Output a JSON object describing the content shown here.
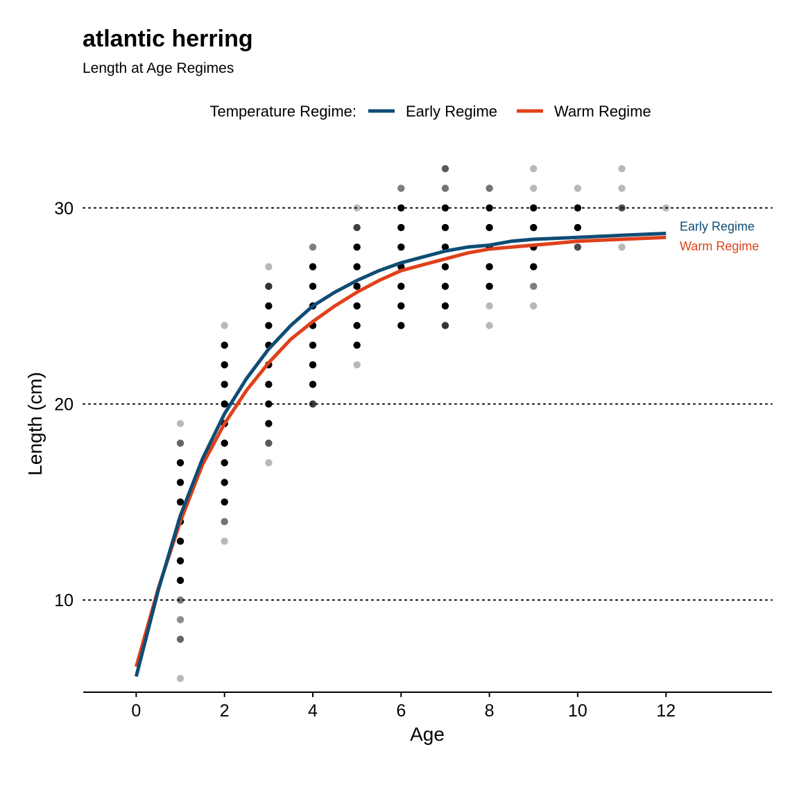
{
  "chart_data": {
    "type": "scatter",
    "title": "atlantic herring",
    "subtitle": "Length at Age Regimes",
    "xlabel": "Age",
    "ylabel": "Length (cm)",
    "xlim": [
      -1.2,
      14.4
    ],
    "ylim": [
      5.3,
      33.6
    ],
    "xticks": [
      0,
      2,
      4,
      6,
      8,
      10,
      12
    ],
    "yticks": [
      10,
      20,
      30
    ],
    "grid": "horizontal dotted at y ticks",
    "legend": {
      "title": "Temperature Regime:",
      "placement": "top",
      "entries": [
        "Early Regime",
        "Warm Regime"
      ]
    },
    "series": [
      {
        "name": "Early Regime",
        "kind": "line",
        "color": "#0f4c75",
        "end_label": "Early Regime",
        "x": [
          0,
          0.5,
          1,
          1.5,
          2,
          2.5,
          3,
          3.5,
          4,
          4.5,
          5,
          5.5,
          6,
          6.5,
          7,
          7.5,
          8,
          8.5,
          9,
          9.5,
          10,
          10.5,
          11,
          11.5,
          12
        ],
        "y": [
          6.1,
          10.5,
          14.3,
          17.2,
          19.5,
          21.3,
          22.8,
          24.0,
          25.0,
          25.7,
          26.3,
          26.8,
          27.2,
          27.5,
          27.8,
          28.0,
          28.1,
          28.3,
          28.4,
          28.45,
          28.5,
          28.55,
          28.6,
          28.65,
          28.7
        ]
      },
      {
        "name": "Warm Regime",
        "kind": "line",
        "color": "#e0401a",
        "end_label": "Warm Regime",
        "x": [
          0,
          0.5,
          1,
          1.5,
          2,
          2.5,
          3,
          3.5,
          4,
          4.5,
          5,
          5.5,
          6,
          6.5,
          7,
          7.5,
          8,
          8.5,
          9,
          9.5,
          10,
          10.5,
          11,
          11.5,
          12
        ],
        "y": [
          6.6,
          10.6,
          14.0,
          16.9,
          19.0,
          20.7,
          22.1,
          23.3,
          24.2,
          25.0,
          25.7,
          26.3,
          26.8,
          27.1,
          27.4,
          27.7,
          27.9,
          28.0,
          28.1,
          28.2,
          28.3,
          28.35,
          28.4,
          28.45,
          28.5
        ]
      },
      {
        "name": "",
        "kind": "points",
        "color": "#000000",
        "points": [
          {
            "x": 1,
            "y": 6,
            "a": 0.28
          },
          {
            "x": 1,
            "y": 8,
            "a": 0.6
          },
          {
            "x": 1,
            "y": 9,
            "a": 0.45
          },
          {
            "x": 1,
            "y": 10,
            "a": 0.55
          },
          {
            "x": 1,
            "y": 11,
            "a": 1
          },
          {
            "x": 1,
            "y": 12,
            "a": 1
          },
          {
            "x": 1,
            "y": 13,
            "a": 1
          },
          {
            "x": 1,
            "y": 14,
            "a": 1
          },
          {
            "x": 1,
            "y": 15,
            "a": 1
          },
          {
            "x": 1,
            "y": 16,
            "a": 1
          },
          {
            "x": 1,
            "y": 17,
            "a": 1
          },
          {
            "x": 1,
            "y": 18,
            "a": 0.6
          },
          {
            "x": 1,
            "y": 19,
            "a": 0.28
          },
          {
            "x": 2,
            "y": 13,
            "a": 0.28
          },
          {
            "x": 2,
            "y": 14,
            "a": 0.55
          },
          {
            "x": 2,
            "y": 15,
            "a": 1
          },
          {
            "x": 2,
            "y": 16,
            "a": 1
          },
          {
            "x": 2,
            "y": 17,
            "a": 1
          },
          {
            "x": 2,
            "y": 18,
            "a": 1
          },
          {
            "x": 2,
            "y": 19,
            "a": 1
          },
          {
            "x": 2,
            "y": 20,
            "a": 1
          },
          {
            "x": 2,
            "y": 21,
            "a": 1
          },
          {
            "x": 2,
            "y": 22,
            "a": 1
          },
          {
            "x": 2,
            "y": 23,
            "a": 1
          },
          {
            "x": 2,
            "y": 24,
            "a": 0.28
          },
          {
            "x": 3,
            "y": 17,
            "a": 0.28
          },
          {
            "x": 3,
            "y": 18,
            "a": 0.65
          },
          {
            "x": 3,
            "y": 19,
            "a": 1
          },
          {
            "x": 3,
            "y": 20,
            "a": 1
          },
          {
            "x": 3,
            "y": 21,
            "a": 1
          },
          {
            "x": 3,
            "y": 22,
            "a": 1
          },
          {
            "x": 3,
            "y": 23,
            "a": 1
          },
          {
            "x": 3,
            "y": 24,
            "a": 1
          },
          {
            "x": 3,
            "y": 25,
            "a": 1
          },
          {
            "x": 3,
            "y": 26,
            "a": 0.8
          },
          {
            "x": 3,
            "y": 27,
            "a": 0.28
          },
          {
            "x": 4,
            "y": 20,
            "a": 0.75
          },
          {
            "x": 4,
            "y": 21,
            "a": 1
          },
          {
            "x": 4,
            "y": 22,
            "a": 1
          },
          {
            "x": 4,
            "y": 23,
            "a": 1
          },
          {
            "x": 4,
            "y": 24,
            "a": 1
          },
          {
            "x": 4,
            "y": 25,
            "a": 1
          },
          {
            "x": 4,
            "y": 26,
            "a": 1
          },
          {
            "x": 4,
            "y": 27,
            "a": 1
          },
          {
            "x": 4,
            "y": 28,
            "a": 0.5
          },
          {
            "x": 5,
            "y": 22,
            "a": 0.28
          },
          {
            "x": 5,
            "y": 23,
            "a": 1
          },
          {
            "x": 5,
            "y": 24,
            "a": 1
          },
          {
            "x": 5,
            "y": 25,
            "a": 1
          },
          {
            "x": 5,
            "y": 26,
            "a": 1
          },
          {
            "x": 5,
            "y": 27,
            "a": 1
          },
          {
            "x": 5,
            "y": 28,
            "a": 1
          },
          {
            "x": 5,
            "y": 29,
            "a": 0.75
          },
          {
            "x": 5,
            "y": 30,
            "a": 0.28
          },
          {
            "x": 6,
            "y": 24,
            "a": 1
          },
          {
            "x": 6,
            "y": 25,
            "a": 1
          },
          {
            "x": 6,
            "y": 26,
            "a": 1
          },
          {
            "x": 6,
            "y": 27,
            "a": 1
          },
          {
            "x": 6,
            "y": 28,
            "a": 1
          },
          {
            "x": 6,
            "y": 29,
            "a": 1
          },
          {
            "x": 6,
            "y": 30,
            "a": 1
          },
          {
            "x": 6,
            "y": 31,
            "a": 0.5
          },
          {
            "x": 7,
            "y": 24,
            "a": 0.8
          },
          {
            "x": 7,
            "y": 25,
            "a": 1
          },
          {
            "x": 7,
            "y": 26,
            "a": 1
          },
          {
            "x": 7,
            "y": 27,
            "a": 1
          },
          {
            "x": 7,
            "y": 28,
            "a": 1
          },
          {
            "x": 7,
            "y": 29,
            "a": 1
          },
          {
            "x": 7,
            "y": 30,
            "a": 1
          },
          {
            "x": 7,
            "y": 31,
            "a": 0.55
          },
          {
            "x": 7,
            "y": 32,
            "a": 0.65
          },
          {
            "x": 8,
            "y": 24,
            "a": 0.28
          },
          {
            "x": 8,
            "y": 25,
            "a": 0.28
          },
          {
            "x": 8,
            "y": 26,
            "a": 1
          },
          {
            "x": 8,
            "y": 27,
            "a": 1
          },
          {
            "x": 8,
            "y": 28,
            "a": 1
          },
          {
            "x": 8,
            "y": 29,
            "a": 1
          },
          {
            "x": 8,
            "y": 30,
            "a": 1
          },
          {
            "x": 8,
            "y": 31,
            "a": 0.55
          },
          {
            "x": 9,
            "y": 25,
            "a": 0.28
          },
          {
            "x": 9,
            "y": 26,
            "a": 0.5
          },
          {
            "x": 9,
            "y": 27,
            "a": 1
          },
          {
            "x": 9,
            "y": 28,
            "a": 1
          },
          {
            "x": 9,
            "y": 29,
            "a": 1
          },
          {
            "x": 9,
            "y": 30,
            "a": 1
          },
          {
            "x": 9,
            "y": 31,
            "a": 0.28
          },
          {
            "x": 9,
            "y": 32,
            "a": 0.28
          },
          {
            "x": 10,
            "y": 28,
            "a": 0.7
          },
          {
            "x": 10,
            "y": 29,
            "a": 1
          },
          {
            "x": 10,
            "y": 30,
            "a": 1
          },
          {
            "x": 10,
            "y": 31,
            "a": 0.28
          },
          {
            "x": 11,
            "y": 28,
            "a": 0.28
          },
          {
            "x": 11,
            "y": 30,
            "a": 0.7
          },
          {
            "x": 11,
            "y": 31,
            "a": 0.28
          },
          {
            "x": 11,
            "y": 32,
            "a": 0.28
          },
          {
            "x": 12,
            "y": 30,
            "a": 0.28
          }
        ]
      }
    ]
  }
}
